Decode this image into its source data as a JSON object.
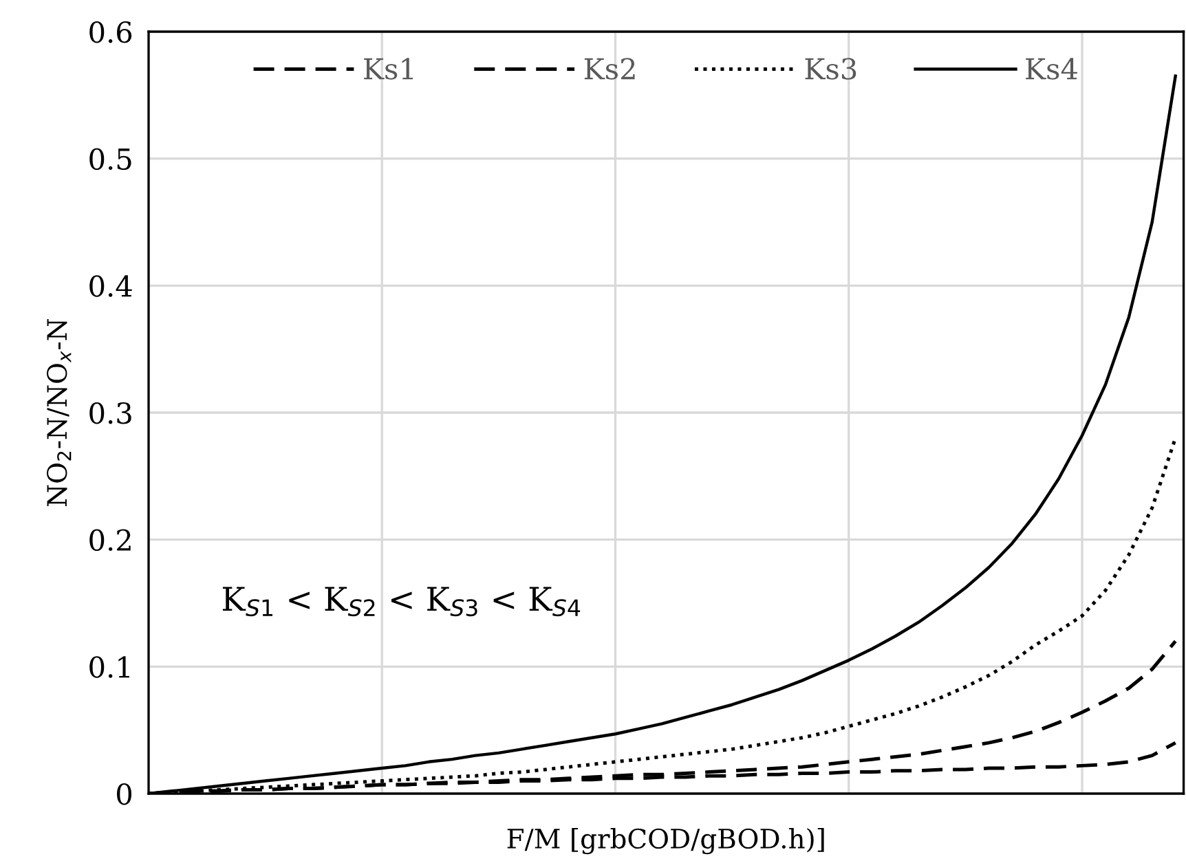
{
  "chart_data": {
    "type": "line",
    "xlabel": "F/M [grbCOD/gBOD.h)]",
    "ylabel": "NO$_{2}$-N/NO$_{x}$-N",
    "categories": [
      null,
      null,
      null,
      null,
      null,
      null,
      null,
      null,
      null,
      null,
      null,
      null,
      null,
      null,
      null,
      null,
      null,
      null,
      null,
      null,
      null,
      null,
      null,
      null,
      null,
      null,
      null,
      null,
      null,
      null,
      null,
      null,
      null,
      null,
      null,
      null,
      null,
      null,
      null,
      null,
      null,
      null,
      null,
      null,
      null
    ],
    "series": [
      {
        "name": "Ks1",
        "color": "#000000",
        "line_style": "dashed",
        "values": [
          0,
          0.001,
          0.002,
          0.002,
          0.003,
          0.003,
          0.004,
          0.004,
          0.005,
          0.006,
          0.007,
          0.007,
          0.008,
          0.008,
          0.009,
          0.009,
          0.01,
          0.01,
          0.011,
          0.011,
          0.012,
          0.012,
          0.013,
          0.013,
          0.014,
          0.014,
          0.015,
          0.015,
          0.016,
          0.016,
          0.017,
          0.017,
          0.018,
          0.018,
          0.019,
          0.019,
          0.02,
          0.02,
          0.021,
          0.021,
          0.022,
          0.023,
          0.025,
          0.03,
          0.04
        ]
      },
      {
        "name": "Ks2",
        "color": "#000000",
        "line_style": "dashed",
        "values": [
          0,
          0.001,
          0.002,
          0.002,
          0.003,
          0.003,
          0.004,
          0.004,
          0.005,
          0.006,
          0.007,
          0.007,
          0.008,
          0.009,
          0.009,
          0.01,
          0.011,
          0.011,
          0.012,
          0.013,
          0.014,
          0.015,
          0.015,
          0.016,
          0.017,
          0.018,
          0.019,
          0.02,
          0.021,
          0.023,
          0.025,
          0.027,
          0.029,
          0.031,
          0.034,
          0.037,
          0.04,
          0.044,
          0.049,
          0.056,
          0.064,
          0.073,
          0.083,
          0.098,
          0.12
        ]
      },
      {
        "name": "Ks3",
        "color": "#000000",
        "line_style": "dotted",
        "values": [
          0,
          0.001,
          0.002,
          0.003,
          0.004,
          0.005,
          0.006,
          0.007,
          0.008,
          0.009,
          0.01,
          0.011,
          0.012,
          0.013,
          0.014,
          0.016,
          0.017,
          0.019,
          0.021,
          0.023,
          0.025,
          0.027,
          0.029,
          0.031,
          0.033,
          0.035,
          0.038,
          0.041,
          0.044,
          0.048,
          0.053,
          0.058,
          0.063,
          0.069,
          0.076,
          0.084,
          0.093,
          0.104,
          0.117,
          0.128,
          0.14,
          0.16,
          0.188,
          0.225,
          0.28
        ]
      },
      {
        "name": "Ks4",
        "color": "#000000",
        "line_style": "solid",
        "values": [
          0,
          0.002,
          0.004,
          0.006,
          0.008,
          0.01,
          0.012,
          0.014,
          0.016,
          0.018,
          0.02,
          0.022,
          0.025,
          0.027,
          0.03,
          0.032,
          0.035,
          0.038,
          0.041,
          0.044,
          0.047,
          0.051,
          0.055,
          0.06,
          0.065,
          0.07,
          0.076,
          0.082,
          0.089,
          0.097,
          0.105,
          0.114,
          0.124,
          0.135,
          0.148,
          0.162,
          0.178,
          0.197,
          0.22,
          0.248,
          0.282,
          0.322,
          0.375,
          0.45,
          0.565
        ]
      }
    ],
    "ylim": [
      0,
      0.6
    ],
    "yticks": [
      0,
      0.1,
      0.2,
      0.3,
      0.4,
      0.5,
      0.6
    ],
    "grid": true,
    "legend": "top",
    "annotations": [
      "K$_{S1}$ < K$_{S2}$ < K$_{S3}$ < K$_{S4}$"
    ]
  }
}
